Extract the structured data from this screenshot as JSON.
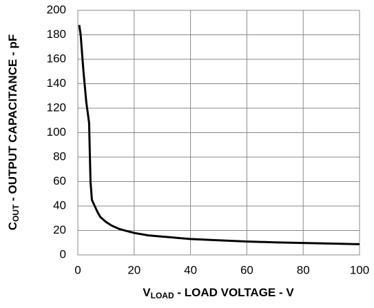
{
  "chart_data": {
    "type": "line",
    "xlabel": [
      "V",
      "LOAD",
      " - LOAD VOLTAGE - V"
    ],
    "ylabel": [
      "C",
      "OUT",
      " - OUTPUT CAPACITANCE - pF"
    ],
    "x": [
      0.5,
      1,
      2,
      3,
      4,
      4.5,
      5,
      6,
      7,
      8,
      10,
      12,
      15,
      20,
      25,
      30,
      40,
      50,
      60,
      70,
      80,
      90,
      100
    ],
    "series": [
      {
        "color": "#000000",
        "values": [
          188,
          180,
          150,
          125,
          108,
          60,
          45,
          40,
          35,
          31,
          27,
          24,
          21,
          18,
          16,
          15,
          13,
          12,
          11,
          10.3,
          9.8,
          9.3,
          8.8
        ]
      }
    ],
    "xlim": [
      0,
      100
    ],
    "xticks": [
      0,
      20,
      40,
      60,
      80,
      100
    ],
    "ylim": [
      0,
      200
    ],
    "yticks": [
      0,
      20,
      40,
      60,
      80,
      100,
      120,
      140,
      160,
      180,
      200
    ],
    "grid": true
  }
}
